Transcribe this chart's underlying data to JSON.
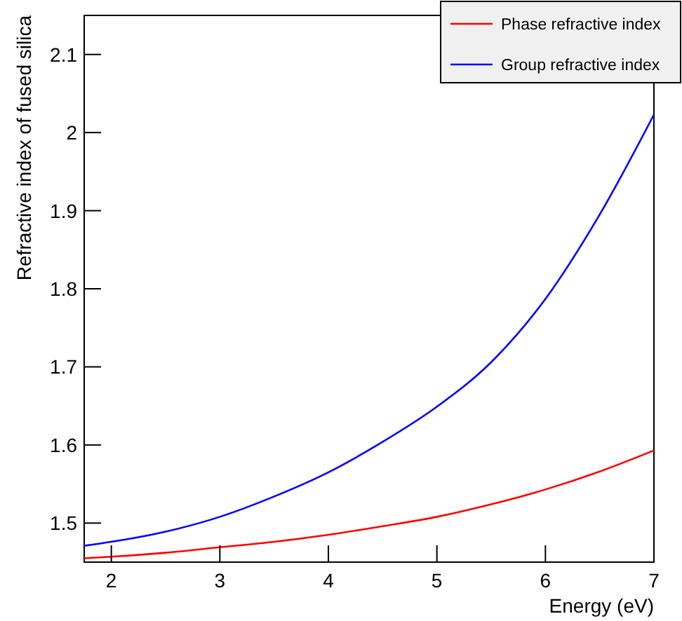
{
  "chart_data": {
    "type": "line",
    "xlabel": "Energy (eV)",
    "ylabel": "Refractive index of fused silica",
    "x": [
      1.75,
      2,
      2.5,
      3,
      3.5,
      4,
      4.5,
      5,
      5.5,
      6,
      6.5,
      7
    ],
    "series": [
      {
        "name": "Phase refractive index",
        "color": "#ff0000",
        "values": [
          1.455,
          1.457,
          1.462,
          1.469,
          1.476,
          1.485,
          1.496,
          1.508,
          1.524,
          1.543,
          1.566,
          1.593
        ]
      },
      {
        "name": "Group refractive index",
        "color": "#0000ff",
        "values": [
          1.471,
          1.476,
          1.489,
          1.508,
          1.534,
          1.565,
          1.604,
          1.649,
          1.706,
          1.787,
          1.895,
          2.023
        ]
      }
    ],
    "xlim": [
      1.75,
      7
    ],
    "ylim": [
      1.45,
      2.15
    ],
    "xticks": [
      2,
      3,
      4,
      5,
      6,
      7
    ],
    "yticks": [
      1.5,
      1.6,
      1.7,
      1.8,
      1.9,
      2,
      2.1
    ],
    "legend": "top right",
    "grid": false,
    "marker": "none",
    "line_style": "solid"
  }
}
